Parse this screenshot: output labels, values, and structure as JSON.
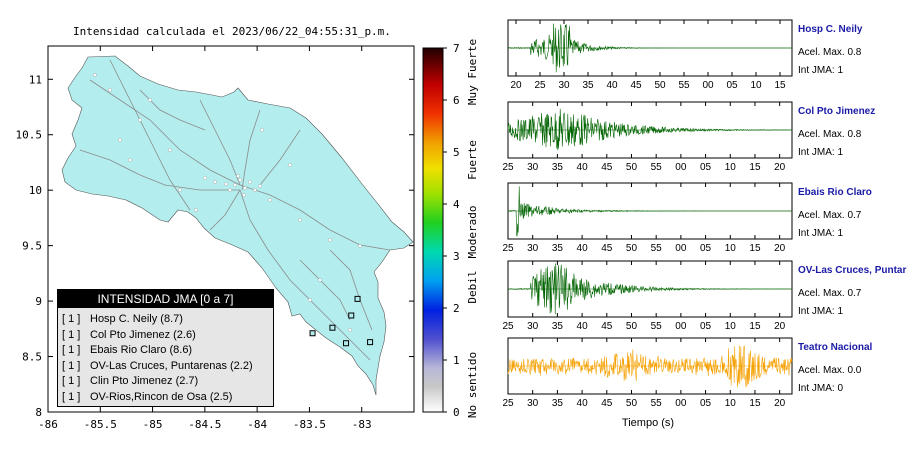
{
  "map": {
    "title": "Intensidad calculada el 2023/06/22_04:55:31_p.m.",
    "x_ticks": [
      "-86",
      "-85.5",
      "-85",
      "-84.5",
      "-84",
      "-83.5",
      "-83"
    ],
    "y_ticks": [
      "11",
      "10.5",
      "10",
      "9.5",
      "9",
      "8.5",
      "8"
    ],
    "land_color": "#b3eded",
    "stations": [
      {
        "lon": -83.04,
        "lat": 9.02
      },
      {
        "lon": -83.1,
        "lat": 8.87
      },
      {
        "lon": -83.28,
        "lat": 8.76
      },
      {
        "lon": -83.47,
        "lat": 8.71
      },
      {
        "lon": -83.15,
        "lat": 8.62
      },
      {
        "lon": -82.92,
        "lat": 8.63
      }
    ]
  },
  "colorbar": {
    "ticks": [
      "0",
      "1",
      "2",
      "3",
      "4",
      "5",
      "6",
      "7"
    ],
    "labels": [
      "No sentido",
      "Debil",
      "Moderado",
      "Fuerte",
      "Muy Fuerte"
    ]
  },
  "legend": {
    "title": "INTENSIDAD JMA [0 a 7]",
    "items": [
      {
        "jma": "[ 1 ]",
        "name": "Hosp C. Neily (8.7)"
      },
      {
        "jma": "[ 1 ]",
        "name": "Col Pto Jimenez (2.6)"
      },
      {
        "jma": "[ 1 ]",
        "name": "Ebais Rio Claro (8.6)"
      },
      {
        "jma": "[ 1 ]",
        "name": "OV-Las Cruces, Puntarenas (2.2)"
      },
      {
        "jma": "[ 1 ]",
        "name": "Clin Pto Jimenez (2.7)"
      },
      {
        "jma": "[ 1 ]",
        "name": "OV-Rios,Rincon de Osa (2.5)"
      }
    ]
  },
  "waveforms": {
    "xlabel": "Tiempo (s)",
    "traces": [
      {
        "name": "Hosp C. Neily",
        "acel": "Acel. Max. 0.8",
        "jma": "Int JMA: 1",
        "color": "#006400",
        "ticks": [
          "20",
          "25",
          "30",
          "35",
          "40",
          "45",
          "50",
          "55",
          "00",
          "05",
          "10",
          "15"
        ]
      },
      {
        "name": "Col Pto Jimenez",
        "acel": "Acel. Max. 0.8",
        "jma": "Int JMA: 1",
        "color": "#006400",
        "ticks": [
          "25",
          "30",
          "35",
          "40",
          "45",
          "50",
          "55",
          "00",
          "05",
          "10",
          "15",
          "20"
        ]
      },
      {
        "name": "Ebais Rio Claro",
        "acel": "Acel. Max. 0.7",
        "jma": "Int JMA: 1",
        "color": "#006400",
        "ticks": [
          "25",
          "30",
          "35",
          "40",
          "45",
          "50",
          "55",
          "00",
          "05",
          "10",
          "15",
          "20"
        ]
      },
      {
        "name": "OV-Las Cruces, Puntar",
        "acel": "Acel. Max. 0.7",
        "jma": "Int JMA: 1",
        "color": "#006400",
        "ticks": [
          "25",
          "30",
          "35",
          "40",
          "45",
          "50",
          "55",
          "00",
          "05",
          "10",
          "15",
          "20"
        ]
      },
      {
        "name": "Teatro Nacional",
        "acel": "Acel. Max. 0.0",
        "jma": "Int JMA: 0",
        "color": "#f5a000",
        "ticks": [
          "25",
          "30",
          "35",
          "40",
          "45",
          "50",
          "55",
          "00",
          "05",
          "10",
          "15",
          "20"
        ]
      }
    ]
  },
  "chart_data": [
    {
      "type": "scatter",
      "title": "Intensidad calculada el 2023/06/22_04:55:31_p.m.",
      "xlim": [
        -86,
        -82.5
      ],
      "ylim": [
        8,
        11.3
      ],
      "series": [
        {
          "values": [
            {
              "x": -83.04,
              "y": 9.02
            },
            {
              "x": -83.1,
              "y": 8.87
            },
            {
              "x": -83.28,
              "y": 8.76
            },
            {
              "x": -83.47,
              "y": 8.71
            },
            {
              "x": -83.15,
              "y": 8.62
            },
            {
              "x": -82.92,
              "y": 8.63
            }
          ]
        }
      ]
    },
    {
      "type": "line",
      "xlabel": "Tiempo (s)",
      "series": [
        {
          "name": "Hosp C. Neily",
          "values": []
        },
        {
          "name": "Col Pto Jimenez",
          "values": []
        },
        {
          "name": "Ebais Rio Claro",
          "values": []
        },
        {
          "name": "OV-Las Cruces, Puntar",
          "values": []
        },
        {
          "name": "Teatro Nacional",
          "values": []
        }
      ]
    }
  ]
}
